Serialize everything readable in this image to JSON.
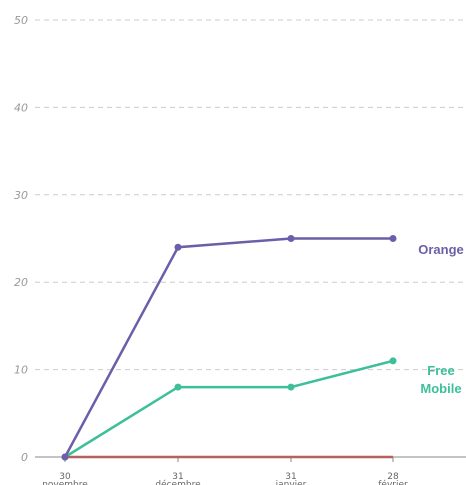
{
  "chart_data": {
    "type": "line",
    "categories": [
      [
        "30",
        "novembre"
      ],
      [
        "31",
        "décembre"
      ],
      [
        "31",
        "janvier"
      ],
      [
        "28",
        "février"
      ]
    ],
    "series": [
      {
        "name": "Orange",
        "color": "#6a5fa8",
        "values": [
          0,
          24,
          25,
          25
        ]
      },
      {
        "name": "Free Mobile",
        "color": "#3dbf9a",
        "values": [
          0,
          8,
          8,
          11
        ]
      },
      {
        "color": "#b5615e",
        "values": [
          0,
          0,
          0,
          0
        ]
      }
    ],
    "ylim": [
      0,
      50
    ],
    "yticks": [
      0,
      10,
      20,
      30,
      40,
      50
    ],
    "grid": true
  }
}
